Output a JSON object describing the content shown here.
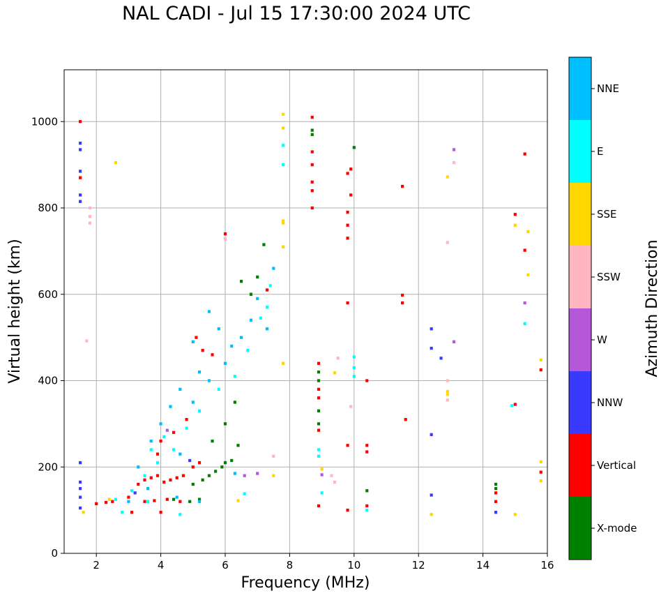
{
  "chart_data": {
    "type": "scatter",
    "title": "NAL CADI - Jul 15 17:30:00 2024 UTC",
    "xlabel": "Frequency (MHz)",
    "ylabel": "Virtual height (km)",
    "xlim": [
      1,
      16
    ],
    "ylim": [
      0,
      1120
    ],
    "xticks": [
      2,
      4,
      6,
      8,
      10,
      12,
      14,
      16
    ],
    "yticks": [
      0,
      200,
      400,
      600,
      800,
      1000
    ],
    "grid": true,
    "colorbar": {
      "label": "Azimuth Direction",
      "categories": [
        {
          "name": "NNE",
          "color": "#00BFFF"
        },
        {
          "name": "E",
          "color": "#00FFFF"
        },
        {
          "name": "SSE",
          "color": "#FFD700"
        },
        {
          "name": "SSW",
          "color": "#FFB6C1"
        },
        {
          "name": "W",
          "color": "#B457D8"
        },
        {
          "name": "NNW",
          "color": "#3A3AFF"
        },
        {
          "name": "Vertical",
          "color": "#FF0000"
        },
        {
          "name": "X-mode",
          "color": "#008000"
        }
      ]
    },
    "series": [
      {
        "name": "X-mode",
        "points": [
          [
            4.9,
            120
          ],
          [
            5.0,
            160
          ],
          [
            5.3,
            170
          ],
          [
            5.5,
            180
          ],
          [
            5.7,
            190
          ],
          [
            5.9,
            200
          ],
          [
            6.0,
            210
          ],
          [
            6.2,
            215
          ],
          [
            6.4,
            250
          ],
          [
            5.6,
            260
          ],
          [
            6.0,
            300
          ],
          [
            6.3,
            350
          ],
          [
            6.5,
            630
          ],
          [
            6.8,
            600
          ],
          [
            7.0,
            640
          ],
          [
            7.2,
            715
          ],
          [
            8.7,
            980
          ],
          [
            8.7,
            970
          ],
          [
            8.9,
            420
          ],
          [
            8.9,
            400
          ],
          [
            8.9,
            330
          ],
          [
            8.9,
            300
          ],
          [
            10.4,
            145
          ],
          [
            14.4,
            160
          ],
          [
            14.4,
            150
          ],
          [
            10.0,
            940
          ],
          [
            4.4,
            125
          ],
          [
            5.2,
            125
          ]
        ]
      },
      {
        "name": "Vertical",
        "points": [
          [
            2.0,
            115
          ],
          [
            2.3,
            118
          ],
          [
            2.5,
            120
          ],
          [
            3.0,
            130
          ],
          [
            3.3,
            160
          ],
          [
            3.5,
            170
          ],
          [
            3.7,
            175
          ],
          [
            3.9,
            180
          ],
          [
            4.1,
            165
          ],
          [
            4.3,
            170
          ],
          [
            4.5,
            175
          ],
          [
            4.7,
            180
          ],
          [
            3.5,
            120
          ],
          [
            3.8,
            122
          ],
          [
            4.2,
            125
          ],
          [
            4.6,
            120
          ],
          [
            3.9,
            230
          ],
          [
            4.0,
            260
          ],
          [
            4.4,
            280
          ],
          [
            4.8,
            310
          ],
          [
            5.0,
            200
          ],
          [
            5.2,
            210
          ],
          [
            5.6,
            460
          ],
          [
            5.1,
            500
          ],
          [
            5.3,
            470
          ],
          [
            6.0,
            740
          ],
          [
            7.3,
            610
          ],
          [
            8.7,
            1010
          ],
          [
            8.7,
            930
          ],
          [
            8.7,
            900
          ],
          [
            8.7,
            860
          ],
          [
            8.7,
            840
          ],
          [
            8.7,
            800
          ],
          [
            8.9,
            440
          ],
          [
            8.9,
            380
          ],
          [
            8.9,
            360
          ],
          [
            8.9,
            285
          ],
          [
            8.9,
            110
          ],
          [
            9.8,
            880
          ],
          [
            9.9,
            890
          ],
          [
            9.9,
            830
          ],
          [
            9.8,
            790
          ],
          [
            9.8,
            760
          ],
          [
            9.8,
            730
          ],
          [
            9.8,
            580
          ],
          [
            10.4,
            400
          ],
          [
            9.8,
            250
          ],
          [
            10.4,
            250
          ],
          [
            10.4,
            235
          ],
          [
            10.4,
            110
          ],
          [
            11.5,
            850
          ],
          [
            11.5,
            598
          ],
          [
            11.5,
            580
          ],
          [
            11.6,
            310
          ],
          [
            14.4,
            140
          ],
          [
            14.4,
            120
          ],
          [
            15.0,
            785
          ],
          [
            15.0,
            345
          ],
          [
            15.3,
            925
          ],
          [
            15.3,
            702
          ],
          [
            15.8,
            425
          ],
          [
            15.8,
            188
          ],
          [
            1.5,
            870
          ],
          [
            1.5,
            1000
          ],
          [
            9.8,
            100
          ],
          [
            3.1,
            95
          ],
          [
            4.0,
            95
          ]
        ]
      },
      {
        "name": "NNW",
        "points": [
          [
            1.5,
            950
          ],
          [
            1.5,
            935
          ],
          [
            1.5,
            885
          ],
          [
            1.5,
            830
          ],
          [
            1.5,
            815
          ],
          [
            1.5,
            210
          ],
          [
            1.5,
            165
          ],
          [
            1.5,
            150
          ],
          [
            1.5,
            130
          ],
          [
            1.5,
            105
          ],
          [
            12.4,
            520
          ],
          [
            12.4,
            475
          ],
          [
            12.7,
            452
          ],
          [
            12.4,
            275
          ],
          [
            12.4,
            135
          ],
          [
            14.4,
            95
          ],
          [
            3.2,
            140
          ],
          [
            4.9,
            215
          ]
        ]
      },
      {
        "name": "W",
        "points": [
          [
            13.1,
            935
          ],
          [
            15.3,
            580
          ],
          [
            13.1,
            490
          ],
          [
            4.2,
            285
          ],
          [
            9.0,
            182
          ],
          [
            7.0,
            185
          ],
          [
            6.6,
            180
          ]
        ]
      },
      {
        "name": "SSW",
        "points": [
          [
            1.8,
            780
          ],
          [
            1.8,
            765
          ],
          [
            1.7,
            492
          ],
          [
            13.1,
            905
          ],
          [
            12.9,
            720
          ],
          [
            12.9,
            400
          ],
          [
            12.9,
            355
          ],
          [
            9.5,
            452
          ],
          [
            9.9,
            340
          ],
          [
            9.4,
            165
          ],
          [
            9.3,
            180
          ],
          [
            6.0,
            728
          ],
          [
            7.5,
            225
          ],
          [
            1.8,
            800
          ]
        ]
      },
      {
        "name": "SSE",
        "points": [
          [
            2.6,
            905
          ],
          [
            7.8,
            985
          ],
          [
            7.8,
            770
          ],
          [
            7.8,
            765
          ],
          [
            7.8,
            710
          ],
          [
            7.8,
            440
          ],
          [
            9.4,
            418
          ],
          [
            12.9,
            872
          ],
          [
            12.9,
            375
          ],
          [
            12.9,
            368
          ],
          [
            15.0,
            760
          ],
          [
            15.4,
            745
          ],
          [
            15.4,
            645
          ],
          [
            15.8,
            448
          ],
          [
            15.8,
            212
          ],
          [
            15.8,
            168
          ],
          [
            15.0,
            90
          ],
          [
            12.4,
            90
          ],
          [
            6.4,
            122
          ],
          [
            7.5,
            180
          ],
          [
            9.0,
            195
          ],
          [
            1.6,
            95
          ],
          [
            2.4,
            125
          ],
          [
            7.8,
            1017
          ]
        ]
      },
      {
        "name": "E",
        "points": [
          [
            7.8,
            945
          ],
          [
            7.8,
            900
          ],
          [
            15.3,
            532
          ],
          [
            14.9,
            342
          ],
          [
            10.0,
            455
          ],
          [
            10.0,
            430
          ],
          [
            10.0,
            410
          ],
          [
            8.9,
            240
          ],
          [
            8.9,
            225
          ],
          [
            10.4,
            100
          ],
          [
            4.6,
            90
          ],
          [
            2.8,
            95
          ],
          [
            3.1,
            145
          ],
          [
            3.5,
            180
          ],
          [
            6.6,
            138
          ],
          [
            7.4,
            620
          ],
          [
            7.3,
            570
          ],
          [
            7.1,
            545
          ],
          [
            6.7,
            470
          ],
          [
            6.3,
            410
          ],
          [
            5.8,
            380
          ],
          [
            5.2,
            330
          ],
          [
            4.8,
            290
          ],
          [
            3.7,
            240
          ],
          [
            3.9,
            210
          ],
          [
            4.1,
            270
          ],
          [
            4.4,
            240
          ],
          [
            9.0,
            140
          ],
          [
            3.6,
            120
          ],
          [
            2.6,
            125
          ]
        ]
      },
      {
        "name": "NNE",
        "points": [
          [
            5.0,
            490
          ],
          [
            5.5,
            560
          ],
          [
            5.8,
            520
          ],
          [
            6.2,
            480
          ],
          [
            6.8,
            540
          ],
          [
            7.0,
            590
          ],
          [
            7.5,
            660
          ],
          [
            5.2,
            420
          ],
          [
            4.6,
            380
          ],
          [
            4.3,
            340
          ],
          [
            4.0,
            300
          ],
          [
            3.7,
            260
          ],
          [
            4.6,
            230
          ],
          [
            5.0,
            350
          ],
          [
            5.5,
            400
          ],
          [
            6.0,
            440
          ],
          [
            6.5,
            500
          ],
          [
            7.3,
            520
          ],
          [
            3.3,
            200
          ],
          [
            3.6,
            150
          ],
          [
            4.5,
            130
          ],
          [
            5.2,
            120
          ],
          [
            6.3,
            185
          ],
          [
            3.0,
            120
          ]
        ]
      }
    ]
  }
}
